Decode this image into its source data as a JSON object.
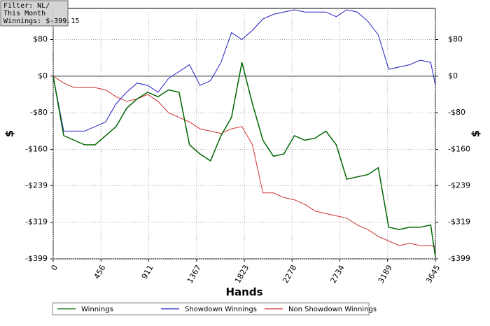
{
  "chart_data": {
    "type": "line",
    "annotations": [
      "Filter: NL/",
      "This Month",
      "Winnings: $-399.15"
    ],
    "x_label": "Hands",
    "y_label": "$",
    "y2_label": "$",
    "xlim": [
      0,
      3645
    ],
    "xticks": [
      0,
      456,
      911,
      1367,
      1823,
      2278,
      2734,
      3189,
      3645
    ],
    "ylim": [
      -399,
      148
    ],
    "yticks": [
      {
        "value": 80,
        "label": "$80"
      },
      {
        "value": 0,
        "label": "$0"
      },
      {
        "value": -80,
        "label": "-$80"
      },
      {
        "value": -160,
        "label": "-$160"
      },
      {
        "value": -239,
        "label": "-$239"
      },
      {
        "value": -319,
        "label": "-$319"
      },
      {
        "value": -399,
        "label": "-$399"
      }
    ],
    "y2lim": [
      -399,
      148
    ],
    "y2ticks": [
      {
        "value": 80,
        "label": "$80"
      },
      {
        "value": 0,
        "label": "$0"
      },
      {
        "value": -80,
        "label": "-$80"
      },
      {
        "value": -160,
        "label": "-$160"
      },
      {
        "value": -239,
        "label": "-$239"
      },
      {
        "value": -319,
        "label": "-$319"
      },
      {
        "value": -399,
        "label": "-$399"
      }
    ],
    "grid": true,
    "legend": "bottom",
    "x": [
      0,
      100,
      200,
      300,
      400,
      500,
      600,
      700,
      800,
      900,
      1000,
      1100,
      1200,
      1300,
      1400,
      1500,
      1600,
      1700,
      1800,
      1900,
      2000,
      2100,
      2200,
      2300,
      2400,
      2500,
      2600,
      2700,
      2800,
      2900,
      3000,
      3100,
      3200,
      3300,
      3400,
      3500,
      3600,
      3645
    ],
    "series": [
      {
        "name": "Winnings",
        "color": "#006400",
        "values": [
          0,
          -130,
          -140,
          -150,
          -150,
          -130,
          -110,
          -70,
          -50,
          -35,
          -45,
          -30,
          -35,
          -150,
          -170,
          -185,
          -130,
          -90,
          30,
          -60,
          -140,
          -175,
          -170,
          -130,
          -140,
          -135,
          -120,
          -150,
          -225,
          -220,
          -215,
          -200,
          -330,
          -335,
          -330,
          -330,
          -325,
          -395
        ]
      },
      {
        "name": "Showdown Winnings",
        "color": "#2020c0",
        "values": [
          0,
          -120,
          -120,
          -120,
          -110,
          -100,
          -60,
          -35,
          -15,
          -20,
          -35,
          -5,
          10,
          25,
          -20,
          -10,
          30,
          95,
          80,
          100,
          125,
          135,
          140,
          145,
          140,
          140,
          140,
          130,
          145,
          140,
          120,
          90,
          15,
          20,
          25,
          35,
          30,
          -20
        ]
      },
      {
        "name": "Non Showdown Winnings",
        "color": "#d03030",
        "values": [
          0,
          -15,
          -25,
          -25,
          -25,
          -30,
          -45,
          -55,
          -50,
          -40,
          -55,
          -80,
          -90,
          -100,
          -115,
          -120,
          -125,
          -115,
          -110,
          -150,
          -255,
          -255,
          -265,
          -270,
          -280,
          -295,
          -300,
          -305,
          -310,
          -325,
          -335,
          -350,
          -360,
          -370,
          -365,
          -370,
          -370,
          -373
        ]
      }
    ]
  }
}
